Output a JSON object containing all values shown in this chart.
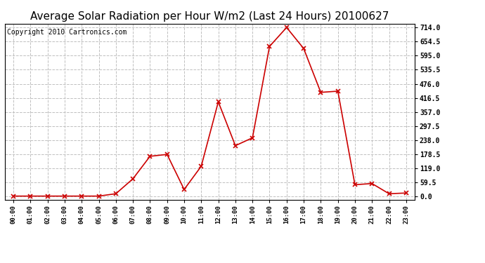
{
  "title": "Average Solar Radiation per Hour W/m2 (Last 24 Hours) 20100627",
  "copyright": "Copyright 2010 Cartronics.com",
  "hours": [
    "00:00",
    "01:00",
    "02:00",
    "03:00",
    "04:00",
    "05:00",
    "06:00",
    "07:00",
    "08:00",
    "09:00",
    "10:00",
    "11:00",
    "12:00",
    "13:00",
    "14:00",
    "15:00",
    "16:00",
    "17:00",
    "18:00",
    "19:00",
    "20:00",
    "21:00",
    "22:00",
    "23:00"
  ],
  "values": [
    2,
    2,
    2,
    2,
    2,
    2,
    12,
    75,
    170,
    178,
    30,
    128,
    400,
    215,
    248,
    634,
    714,
    625,
    440,
    445,
    50,
    55,
    12,
    15
  ],
  "line_color": "#cc0000",
  "marker": "x",
  "marker_color": "#cc0000",
  "bg_color": "#ffffff",
  "grid_color": "#c0c0c0",
  "yticks": [
    0.0,
    59.5,
    119.0,
    178.5,
    238.0,
    297.5,
    357.0,
    416.5,
    476.0,
    535.5,
    595.0,
    654.5,
    714.0
  ],
  "ylim": [
    -14,
    730
  ],
  "title_fontsize": 11,
  "copyright_fontsize": 7
}
